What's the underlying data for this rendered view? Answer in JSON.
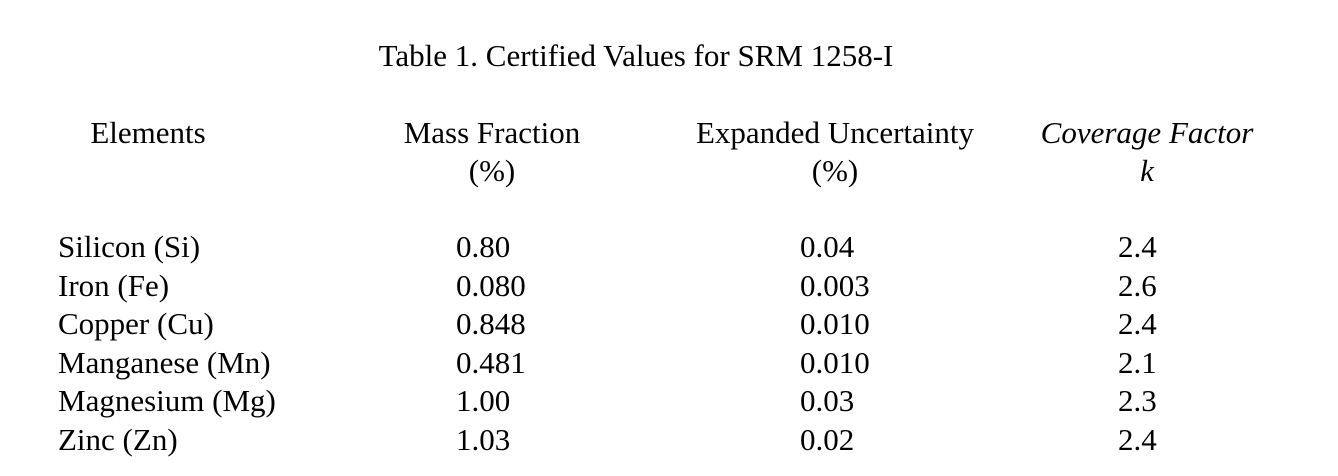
{
  "title": "Table 1.  Certified Values for SRM 1258-I",
  "headers": {
    "elements": "Elements",
    "mass_fraction": "Mass Fraction",
    "mass_fraction_unit": "(%)",
    "expanded_uncertainty": "Expanded Uncertainty",
    "expanded_uncertainty_unit": "(%)",
    "coverage_factor": "Coverage Factor",
    "coverage_factor_symbol": "k"
  },
  "rows": [
    {
      "element": "Silicon (Si)",
      "mass_fraction": "0.80",
      "uncertainty": "0.04",
      "coverage": "2.4"
    },
    {
      "element": "Iron (Fe)",
      "mass_fraction": "0.080",
      "uncertainty": "0.003",
      "coverage": "2.6"
    },
    {
      "element": "Copper (Cu)",
      "mass_fraction": "0.848",
      "uncertainty": "0.010",
      "coverage": "2.4"
    },
    {
      "element": "Manganese (Mn)",
      "mass_fraction": "0.481",
      "uncertainty": "0.010",
      "coverage": "2.1"
    },
    {
      "element": "Magnesium (Mg)",
      "mass_fraction": "1.00",
      "uncertainty": "0.03",
      "coverage": "2.3"
    },
    {
      "element": "Zinc (Zn)",
      "mass_fraction": "1.03",
      "uncertainty": "0.02",
      "coverage": "2.4"
    }
  ]
}
